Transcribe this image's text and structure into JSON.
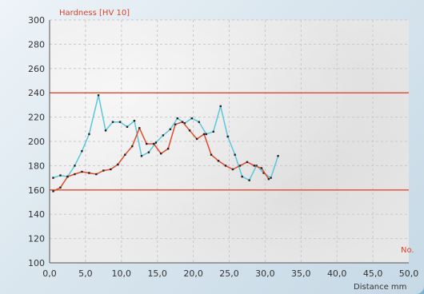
{
  "chart_data": {
    "type": "line",
    "title": "Hardness [HV 10]",
    "xlabel": "Distance mm",
    "corner_label": "No.",
    "xlim": [
      0,
      50
    ],
    "ylim": [
      100,
      300
    ],
    "x_ticks": [
      "0,0",
      "5,0",
      "10,0",
      "15,0",
      "20,0",
      "25,0",
      "30,0",
      "35,0",
      "40,0",
      "45,0",
      "50,0"
    ],
    "y_ticks": [
      "100",
      "120",
      "140",
      "160",
      "180",
      "200",
      "220",
      "240",
      "260",
      "280",
      "300"
    ],
    "grid": true,
    "limits": [
      160,
      240
    ],
    "colors": {
      "series_a": "#5bc6dc",
      "series_b": "#e04a2a",
      "limit": "#e04a2a"
    },
    "series": [
      {
        "x": [
          0.5,
          1.5,
          2.5,
          3.5,
          4.5,
          5.5,
          6.8,
          7.8,
          8.8,
          9.8,
          10.8,
          11.8,
          12.8,
          13.8,
          14.8,
          15.8,
          16.8,
          17.8,
          18.8,
          19.8,
          20.8,
          21.8,
          22.8,
          23.8,
          24.8,
          25.8,
          26.8,
          27.8,
          28.8,
          29.8,
          30.8,
          31.8
        ],
        "values": [
          170,
          172,
          171,
          180,
          192,
          206,
          238,
          209,
          216,
          216,
          212,
          217,
          188,
          191,
          199,
          205,
          210,
          219,
          215,
          219,
          216,
          206,
          208,
          229,
          204,
          189,
          171,
          168,
          180,
          174,
          170,
          188
        ]
      },
      {
        "x": [
          0.5,
          1.5,
          2.5,
          3.5,
          4.5,
          5.5,
          6.5,
          7.5,
          8.5,
          9.5,
          10.5,
          11.5,
          12.5,
          13.5,
          14.5,
          15.5,
          16.5,
          17.5,
          18.5,
          19.5,
          20.5,
          21.5,
          22.5,
          23.5,
          24.5,
          25.5,
          26.5,
          27.5,
          28.5,
          29.5,
          30.5
        ],
        "values": [
          159,
          162,
          171,
          173,
          175,
          174,
          173,
          176,
          177,
          181,
          189,
          196,
          211,
          198,
          198,
          190,
          194,
          214,
          216,
          209,
          202,
          206,
          189,
          184,
          180,
          177,
          180,
          183,
          180,
          178,
          169
        ]
      }
    ]
  }
}
